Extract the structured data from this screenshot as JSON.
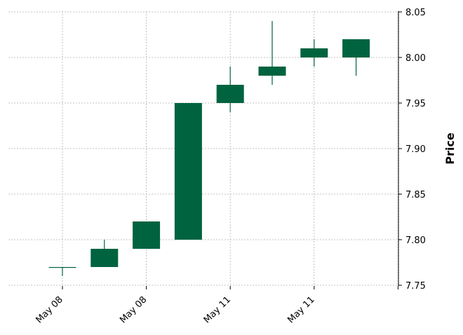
{
  "chart_data": {
    "type": "candlestick",
    "title": "",
    "xlabel": "",
    "ylabel": "Price",
    "ylim": [
      7.75,
      8.05
    ],
    "y_ticks": [
      "7.75",
      "7.80",
      "7.85",
      "7.90",
      "7.95",
      "8.00",
      "8.05"
    ],
    "x_tick_labels": [
      "May 08",
      "May 08",
      "May 11",
      "May 11",
      ""
    ],
    "grid": true,
    "y_axis_side": "right",
    "colors": {
      "up": "#006340",
      "down": "#d62728"
    },
    "candles": [
      {
        "open": 7.77,
        "high": 7.77,
        "low": 7.76,
        "close": 7.77
      },
      {
        "open": 7.77,
        "high": 7.8,
        "low": 7.77,
        "close": 7.79
      },
      {
        "open": 7.79,
        "high": 7.82,
        "low": 7.79,
        "close": 7.82
      },
      {
        "open": 7.8,
        "high": 7.95,
        "low": 7.8,
        "close": 7.95
      },
      {
        "open": 7.95,
        "high": 7.99,
        "low": 7.94,
        "close": 7.97
      },
      {
        "open": 7.98,
        "high": 8.04,
        "low": 7.97,
        "close": 7.99
      },
      {
        "open": 8.0,
        "high": 8.02,
        "low": 7.99,
        "close": 8.01
      },
      {
        "open": 8.0,
        "high": 8.02,
        "low": 7.98,
        "close": 8.02
      }
    ]
  }
}
